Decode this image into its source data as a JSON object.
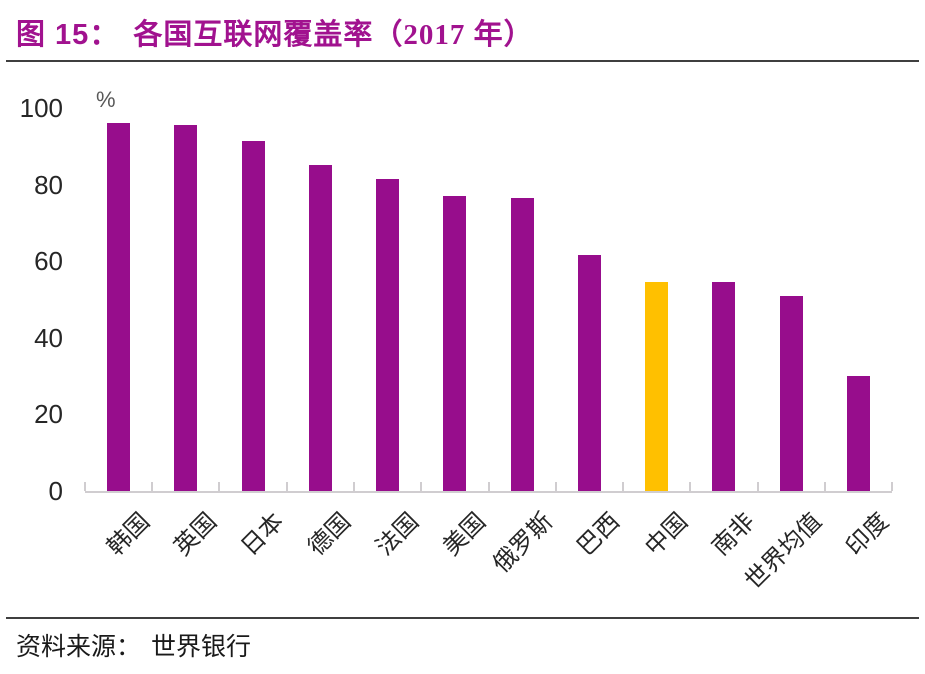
{
  "title": {
    "prefix": "图 15：",
    "text": "各国互联网覆盖率（2017 年）"
  },
  "footer": {
    "source_label": "资料来源：",
    "source_text": "世界银行"
  },
  "colors": {
    "title": "#A1128F",
    "rule": "#3F3F3F",
    "text": "#262626",
    "unit": "#595959",
    "axis": "#D0CDD0"
  },
  "chart_data": {
    "type": "bar",
    "title": "各国互联网覆盖率（2017 年）",
    "unit": "%",
    "categories": [
      "韩国",
      "英国",
      "日本",
      "德国",
      "法国",
      "美国",
      "俄罗斯",
      "巴西",
      "中国",
      "南非",
      "世界均值",
      "印度"
    ],
    "values": [
      96,
      95.5,
      91.5,
      85,
      81.5,
      77,
      76.5,
      61.5,
      54.5,
      54.5,
      51,
      30
    ],
    "highlight_category": "中国",
    "bar_color": "#970D8C",
    "highlight_color": "#FFC000",
    "yticks": [
      100,
      80,
      60,
      40,
      20,
      0
    ],
    "ylim": [
      0,
      100
    ],
    "grid": false,
    "legend": false,
    "xlabel": "",
    "ylabel": "%"
  }
}
